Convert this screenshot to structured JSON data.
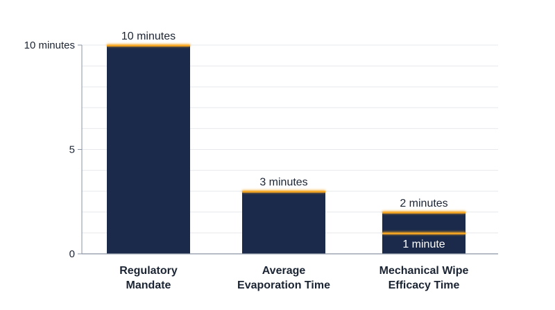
{
  "chart_data": {
    "type": "bar",
    "title": "",
    "xlabel": "",
    "ylabel": "",
    "categories": [
      [
        "Regulatory",
        "Mandate"
      ],
      [
        "Average",
        "Evaporation Time"
      ],
      [
        "Mechanical Wipe",
        "Efficacy Time"
      ]
    ],
    "values": [
      10,
      3,
      2
    ],
    "value_labels": [
      "10 minutes",
      "3 minutes",
      "2 minutes"
    ],
    "marker": {
      "category_index": 2,
      "value": 1,
      "label": "1 minute"
    },
    "ylim": [
      0,
      10
    ],
    "y_ticks": [
      {
        "value": 0,
        "label": "0"
      },
      {
        "value": 5,
        "label": "5"
      },
      {
        "value": 10,
        "label": "10 minutes"
      }
    ],
    "minor_gridlines": [
      1,
      2,
      3,
      4,
      6,
      7,
      8,
      9
    ],
    "grid": true,
    "colors": {
      "bar": "#1b2a4b",
      "highlight": "#f5a623",
      "grid": "#e6e8ec",
      "axis": "#8a93a3",
      "text": "#1b2433"
    }
  }
}
